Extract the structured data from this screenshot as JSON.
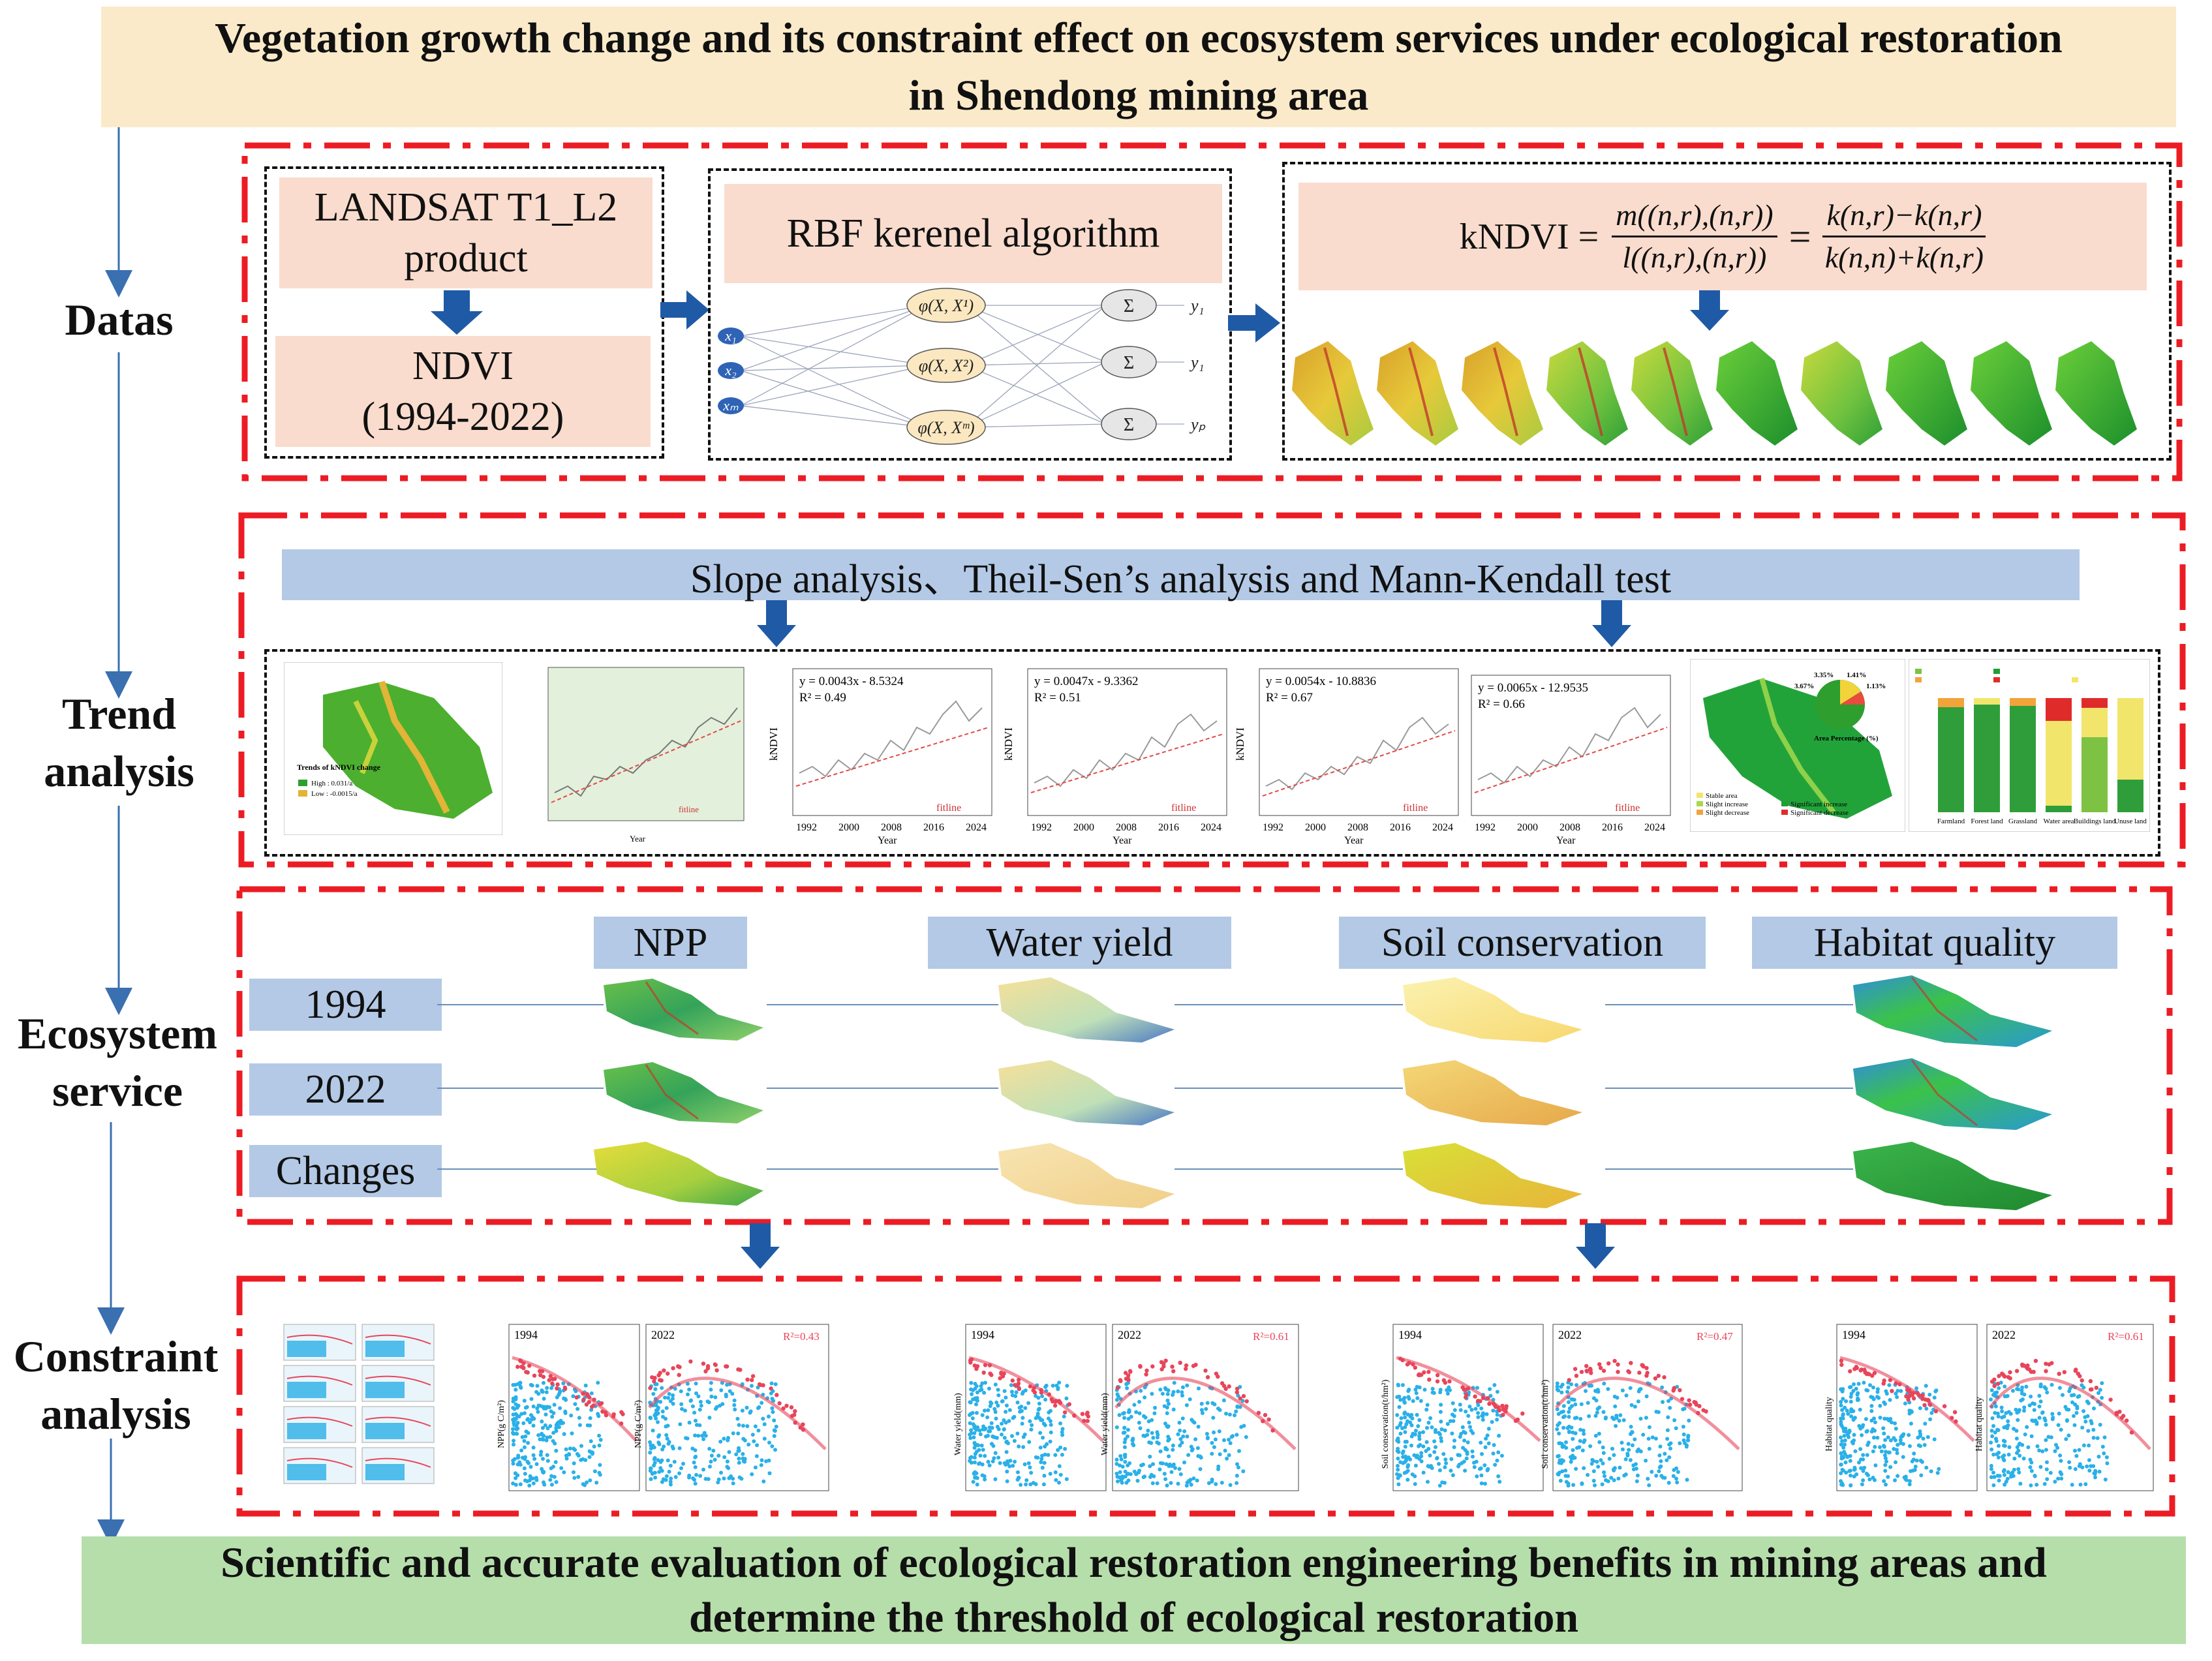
{
  "title": {
    "line1": "Vegetation growth change and its constraint effect on ecosystem services under ecological restoration",
    "line2": "in Shendong mining area"
  },
  "conclusion": {
    "line1": "Scientific and accurate evaluation of ecological restoration engineering benefits in mining areas and",
    "line2": "determine the threshold of ecological restoration"
  },
  "stages": {
    "datas": "Datas",
    "trend_line1": "Trend",
    "trend_line2": "analysis",
    "eco_line1": "Ecosystem",
    "eco_line2": "service",
    "constraint_line1": "Constraint",
    "constraint_line2": "analysis"
  },
  "data_section": {
    "landsat_line1": "LANDSAT T1_L2",
    "landsat_line2": "product",
    "ndvi_line1": "NDVI",
    "ndvi_line2": "(1994-2022)",
    "rbf": "RBF kerenel algorithm",
    "kndvi_lhs": "kNDVI =",
    "frac1_num": "m((n,r),(n,r))",
    "frac1_den": "l((n,r),(n,r))",
    "eq": "=",
    "frac2_num": "k(n,r)−k(n,r)",
    "frac2_den": "k(n,n)+k(n,r)",
    "nn_inputs": [
      "x₁",
      "x₂",
      "xₘ"
    ],
    "nn_kernels": [
      "φ(X, X¹)",
      "φ(X, X²)",
      "φ(X, Xᵐ)"
    ],
    "nn_sums": [
      "Σ",
      "Σ",
      "Σ"
    ],
    "nn_outputs": [
      "y₁",
      "y₁",
      "yₚ"
    ]
  },
  "trend_section": {
    "header": "Slope analysis、Theil-Sen’s analysis and Mann-Kendall test",
    "map_title": "Trends of kNDVI change",
    "map_high": "High : 0.031/a",
    "map_low": "Low : -0.0015/a",
    "fitline": "fitline",
    "year_label": "Year",
    "kndvi_label": "kNDVI",
    "x_ticks": [
      "1992",
      "2000",
      "2008",
      "2016",
      "2024"
    ],
    "regressions": [
      {
        "eq": "y = 0.0043x - 8.5324",
        "r2": "R² = 0.49"
      },
      {
        "eq": "y = 0.0047x - 9.3362",
        "r2": "R² = 0.51"
      },
      {
        "eq": "y = 0.0054x - 10.8836",
        "r2": "R² = 0.67"
      },
      {
        "eq": "y = 0.0065x - 12.9535",
        "r2": "R² = 0.66"
      }
    ],
    "pie_title": "Area Percentage (%)",
    "pie_values": [
      "3.35%",
      "1.41%",
      "3.67%",
      "1.13%"
    ],
    "legend_items": [
      "Stable area",
      "Slight increase",
      "Slight decrease",
      "Significant increase",
      "Significant decrease"
    ],
    "bar_categories": [
      "Farmland",
      "Forest land",
      "Grassland",
      "Water area",
      "Buildings land",
      "Unuse land"
    ]
  },
  "eco_section": {
    "services": [
      "NPP",
      "Water yield",
      "Soil conservation",
      "Habitat quality"
    ],
    "rows": [
      "1994",
      "2022",
      "Changes"
    ]
  },
  "constraint_section": {
    "plots": [
      {
        "year": "1994",
        "ylabel": "NPP(g C/m²)",
        "r2": ""
      },
      {
        "year": "2022",
        "ylabel": "NPP(g C/m²)",
        "r2": "R²=0.43"
      },
      {
        "year": "1994",
        "ylabel": "Water yield(mm)",
        "r2": ""
      },
      {
        "year": "2022",
        "ylabel": "Water yield(mm)",
        "r2": "R²=0.61"
      },
      {
        "year": "1994",
        "ylabel": "Soil conservation(t/hm²)",
        "r2": ""
      },
      {
        "year": "2022",
        "ylabel": "Soil conservation(t/hm²)",
        "r2": "R²=0.47"
      },
      {
        "year": "1994",
        "ylabel": "Habitat quality",
        "r2": ""
      },
      {
        "year": "2022",
        "ylabel": "Habitat quality",
        "r2": "R²=0.61"
      }
    ]
  },
  "colors": {
    "title_bg": "#fbeac9",
    "conclusion_bg": "#b6deab",
    "section_border": "#ec1c24",
    "pink_box": "#f9dccd",
    "blue_label": "#b3c9e6",
    "arrow_blue": "#1f5aa6",
    "scatter_blue": "#2ab0e8",
    "scatter_red": "#e8455a"
  }
}
